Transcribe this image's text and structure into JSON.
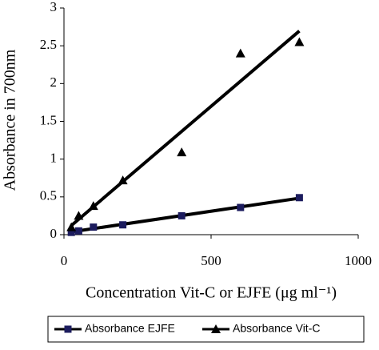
{
  "chart_data": {
    "type": "scatter",
    "x_label": "Concentration Vit-C or EJFE (μg ml⁻¹)",
    "y_label": "Absorbance in 700nm",
    "x": [
      25,
      50,
      100,
      200,
      400,
      600,
      800
    ],
    "series": [
      {
        "name": "Absorbance EJFE",
        "color": "#1c1c5e",
        "marker": "square",
        "values": [
          0.03,
          0.05,
          0.1,
          0.13,
          0.25,
          0.36,
          0.49
        ]
      },
      {
        "name": "Absorbance Vit-C",
        "color": "#000000",
        "marker": "triangle",
        "values": [
          0.1,
          0.25,
          0.38,
          0.72,
          1.09,
          2.4,
          2.55
        ]
      }
    ],
    "trendline": "linear",
    "xlim": [
      0,
      1000
    ],
    "xticks": [
      0,
      500,
      1000
    ],
    "ylim": [
      0,
      3
    ],
    "yticks": [
      0,
      0.5,
      1,
      1.5,
      2,
      2.5,
      3
    ],
    "grid": false,
    "legend": "bottom"
  }
}
